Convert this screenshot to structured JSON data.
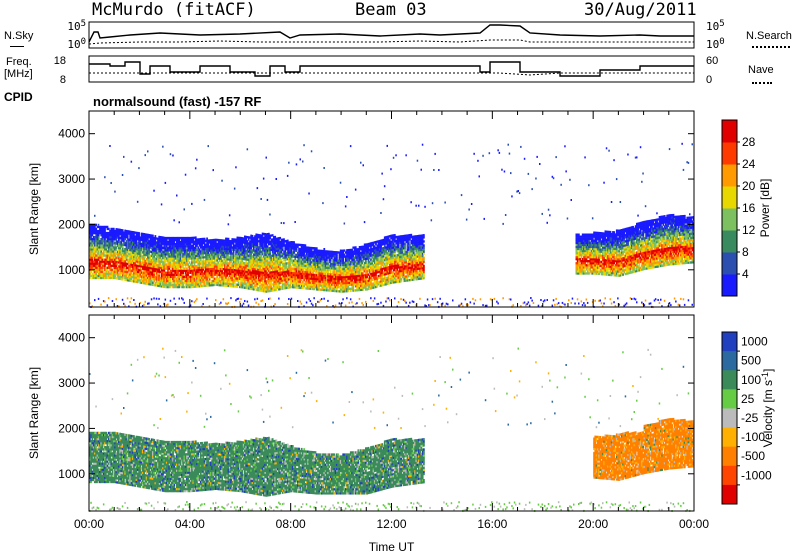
{
  "header": {
    "station": "McMurdo (fitACF)",
    "beam": "Beam 03",
    "date": "30/Aug/2011"
  },
  "top_panel": {
    "left_label": "N.Sky",
    "right_label": "N.Search",
    "left_ticks": [
      "10^5",
      "10^0"
    ],
    "right_ticks": [
      "10^5",
      "10^0"
    ]
  },
  "freq_panel": {
    "left_label_1": "Freq.",
    "left_label_2": "[MHz]",
    "left_ticks": [
      "18",
      "8"
    ],
    "right_label": "Nave",
    "right_ticks": [
      "60",
      "0"
    ]
  },
  "cpid": {
    "label": "CPID",
    "mode": "normalsound (fast) -157 RF"
  },
  "chart_data": [
    {
      "type": "heatmap",
      "name": "power",
      "xlabel": "",
      "ylabel": "Slant Range [km]",
      "y_ticks": [
        "1000",
        "2000",
        "3000",
        "4000"
      ],
      "ylim": [
        180,
        4500
      ],
      "colorbar_label": "Power [dB]",
      "colorbar_ticks": [
        "4",
        "8",
        "12",
        "16",
        "20",
        "24",
        "28"
      ],
      "colorbar_colors": [
        "#1a1aff",
        "#2a4fb0",
        "#3a8a60",
        "#7cc060",
        "#e8d800",
        "#ff9a00",
        "#ff3a00",
        "#e00000"
      ],
      "echo_band": [
        {
          "t": 0.0,
          "lo": 800,
          "hi": 2000
        },
        {
          "t": 1.0,
          "lo": 800,
          "hi": 1900
        },
        {
          "t": 2.0,
          "lo": 700,
          "hi": 1800
        },
        {
          "t": 3.0,
          "lo": 600,
          "hi": 1700
        },
        {
          "t": 4.0,
          "lo": 600,
          "hi": 1700
        },
        {
          "t": 5.0,
          "lo": 650,
          "hi": 1650
        },
        {
          "t": 6.0,
          "lo": 600,
          "hi": 1700
        },
        {
          "t": 7.0,
          "lo": 500,
          "hi": 1800
        },
        {
          "t": 8.0,
          "lo": 600,
          "hi": 1600
        },
        {
          "t": 9.0,
          "lo": 550,
          "hi": 1450
        },
        {
          "t": 10.0,
          "lo": 500,
          "hi": 1400
        },
        {
          "t": 11.0,
          "lo": 550,
          "hi": 1550
        },
        {
          "t": 12.0,
          "lo": 700,
          "hi": 1750
        },
        {
          "t": 13.3,
          "lo": 800,
          "hi": 1750
        },
        {
          "t": 19.3,
          "lo": 900,
          "hi": 1800
        },
        {
          "t": 20.0,
          "lo": 900,
          "hi": 1800
        },
        {
          "t": 21.0,
          "lo": 850,
          "hi": 1850
        },
        {
          "t": 22.0,
          "lo": 1000,
          "hi": 2050
        },
        {
          "t": 23.0,
          "lo": 1100,
          "hi": 2200
        },
        {
          "t": 24.0,
          "lo": 1150,
          "hi": 2150
        }
      ]
    },
    {
      "type": "heatmap",
      "name": "velocity",
      "xlabel": "Time UT",
      "ylabel": "Slant Range [km]",
      "x_ticks": [
        "00:00",
        "04:00",
        "08:00",
        "12:00",
        "16:00",
        "20:00",
        "00:00"
      ],
      "xlim": [
        0,
        24
      ],
      "y_ticks": [
        "1000",
        "2000",
        "3000",
        "4000"
      ],
      "ylim": [
        180,
        4500
      ],
      "colorbar_label": "Velocity [m s^-1]",
      "colorbar_ticks": [
        "1000",
        "500",
        "100",
        "25",
        "-25",
        "-100",
        "-500",
        "-1000"
      ],
      "colorbar_colors": [
        "#2040c0",
        "#2a6aa0",
        "#3a8a5a",
        "#66cc44",
        "#bbbbbb",
        "#ffb000",
        "#ff8000",
        "#ff4400",
        "#e00000"
      ],
      "segments": [
        {
          "t0": 0.0,
          "t1": 8.0,
          "lo": 600,
          "hi": 1800,
          "color": "#3a8a5a"
        },
        {
          "t0": 8.0,
          "t1": 13.3,
          "lo": 650,
          "hi": 1700,
          "color": "#3a8a5a"
        },
        {
          "t0": 20.0,
          "t1": 22.0,
          "lo": 700,
          "hi": 1800,
          "color": "#ff8000"
        },
        {
          "t0": 22.0,
          "t1": 24.0,
          "lo": 1100,
          "hi": 2100,
          "color": "#ff8000"
        }
      ]
    }
  ]
}
